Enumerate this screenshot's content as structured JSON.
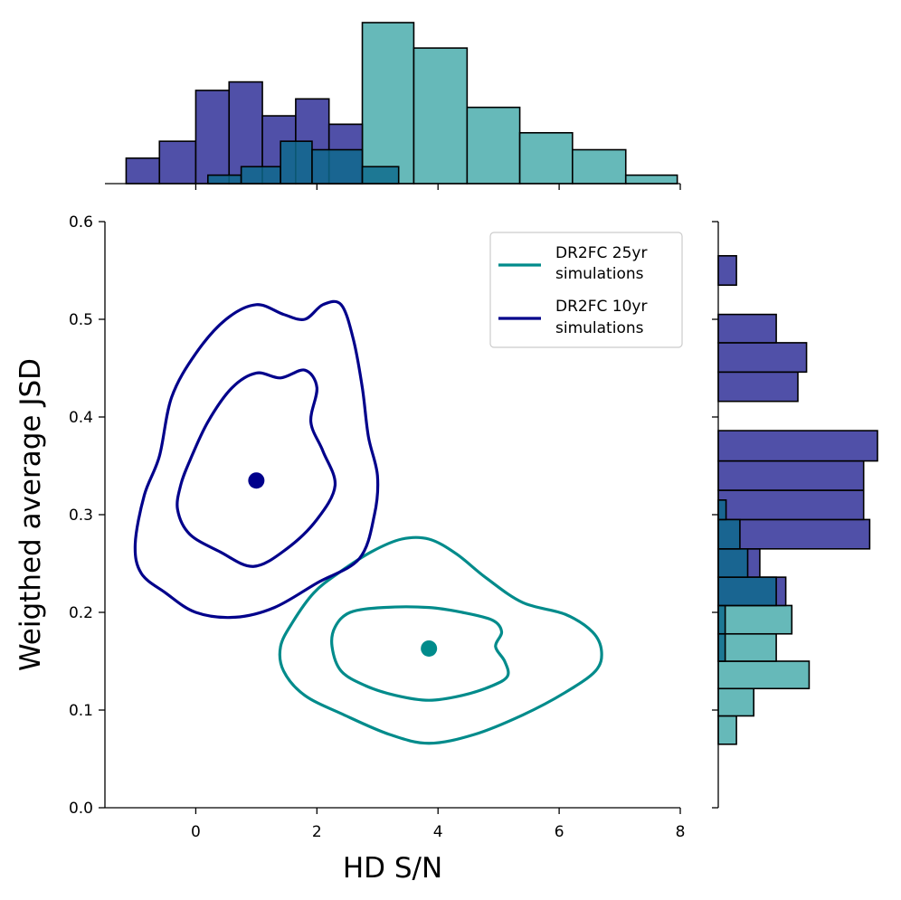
{
  "chart_data": {
    "type": "scatter",
    "subtype": "joint-kde-with-marginal-histograms",
    "xlabel": "HD S/N",
    "ylabel": "Weigthed average JSD",
    "xlim": [
      -1.5,
      8
    ],
    "ylim": [
      0.0,
      0.6
    ],
    "xticks": [
      0,
      2,
      4,
      6,
      8
    ],
    "yticks": [
      0.0,
      0.1,
      0.2,
      0.3,
      0.4,
      0.5,
      0.6
    ],
    "xtick_labels": [
      "0",
      "2",
      "4",
      "6",
      "8"
    ],
    "ytick_labels": [
      "0.0",
      "0.1",
      "0.2",
      "0.3",
      "0.4",
      "0.5",
      "0.6"
    ],
    "legend": {
      "placement": "top-right",
      "entries": [
        {
          "label_line1": "DR2FC 25yr",
          "label_line2": "simulations",
          "series": "s25"
        },
        {
          "label_line1": "DR2FC 10yr",
          "label_line2": "simulations",
          "series": "s10"
        }
      ]
    },
    "series": [
      {
        "id": "s25",
        "name": "DR2FC 25yr simulations",
        "line_color": "#008B8B",
        "hist_color": "#66B9B9",
        "centroid": {
          "x": 3.85,
          "y": 0.163
        },
        "contours": [
          [
            [
              1.45,
              0.14
            ],
            [
              1.8,
              0.115
            ],
            [
              2.45,
              0.095
            ],
            [
              3.2,
              0.075
            ],
            [
              3.85,
              0.066
            ],
            [
              4.6,
              0.075
            ],
            [
              5.4,
              0.095
            ],
            [
              6.1,
              0.118
            ],
            [
              6.6,
              0.14
            ],
            [
              6.7,
              0.16
            ],
            [
              6.55,
              0.18
            ],
            [
              6.1,
              0.198
            ],
            [
              5.4,
              0.21
            ],
            [
              4.8,
              0.235
            ],
            [
              4.3,
              0.26
            ],
            [
              3.85,
              0.275
            ],
            [
              3.4,
              0.275
            ],
            [
              2.9,
              0.262
            ],
            [
              2.35,
              0.24
            ],
            [
              1.95,
              0.22
            ],
            [
              1.6,
              0.19
            ],
            [
              1.4,
              0.165
            ]
          ],
          [
            [
              2.25,
              0.165
            ],
            [
              2.4,
              0.14
            ],
            [
              2.8,
              0.125
            ],
            [
              3.3,
              0.115
            ],
            [
              3.85,
              0.11
            ],
            [
              4.4,
              0.115
            ],
            [
              4.9,
              0.125
            ],
            [
              5.15,
              0.135
            ],
            [
              5.1,
              0.15
            ],
            [
              4.95,
              0.165
            ],
            [
              5.05,
              0.18
            ],
            [
              4.9,
              0.192
            ],
            [
              4.4,
              0.2
            ],
            [
              3.85,
              0.205
            ],
            [
              3.1,
              0.205
            ],
            [
              2.55,
              0.2
            ],
            [
              2.3,
              0.185
            ]
          ]
        ],
        "x_hist": {
          "bin_edges": [
            0.2,
            0.75,
            1.4,
            1.92,
            2.75,
            3.35
          ],
          "counts": [
            1,
            2,
            5,
            4,
            2
          ]
        },
        "x_hist_upper": {
          "bin_edges": [
            1.92,
            2.75,
            3.6,
            4.48,
            5.35,
            6.22,
            7.1,
            7.95
          ],
          "counts": [
            7,
            19,
            16,
            9,
            6,
            4,
            1
          ]
        },
        "y_hist": {
          "bin_edges": [
            0.065,
            0.094,
            0.122,
            0.15,
            0.178,
            0.207
          ],
          "counts": [
            2.1,
            4.1,
            10.5,
            6.7,
            8.5
          ]
        }
      },
      {
        "id": "s10",
        "name": "DR2FC 10yr simulations",
        "line_color": "#00008B",
        "hist_color": "#5050A8",
        "centroid": {
          "x": 1.0,
          "y": 0.335
        },
        "contours": [
          [
            [
              -1.0,
              0.27
            ],
            [
              -0.9,
              0.24
            ],
            [
              -0.5,
              0.22
            ],
            [
              0.0,
              0.2
            ],
            [
              0.65,
              0.195
            ],
            [
              1.3,
              0.205
            ],
            [
              2.0,
              0.23
            ],
            [
              2.7,
              0.255
            ],
            [
              2.95,
              0.3
            ],
            [
              3.0,
              0.34
            ],
            [
              2.85,
              0.38
            ],
            [
              2.75,
              0.43
            ],
            [
              2.6,
              0.48
            ],
            [
              2.4,
              0.515
            ],
            [
              2.1,
              0.515
            ],
            [
              1.8,
              0.5
            ],
            [
              1.45,
              0.505
            ],
            [
              1.0,
              0.515
            ],
            [
              0.5,
              0.5
            ],
            [
              0.0,
              0.465
            ],
            [
              -0.4,
              0.42
            ],
            [
              -0.6,
              0.36
            ],
            [
              -0.85,
              0.32
            ]
          ],
          [
            [
              -0.3,
              0.305
            ],
            [
              -0.1,
              0.28
            ],
            [
              0.4,
              0.262
            ],
            [
              0.95,
              0.247
            ],
            [
              1.5,
              0.265
            ],
            [
              2.0,
              0.295
            ],
            [
              2.3,
              0.33
            ],
            [
              2.1,
              0.365
            ],
            [
              1.9,
              0.395
            ],
            [
              2.0,
              0.43
            ],
            [
              1.8,
              0.448
            ],
            [
              1.4,
              0.44
            ],
            [
              1.0,
              0.445
            ],
            [
              0.6,
              0.43
            ],
            [
              0.2,
              0.395
            ],
            [
              -0.1,
              0.355
            ],
            [
              -0.25,
              0.33
            ]
          ]
        ],
        "x_hist": {
          "bin_edges": [
            -1.15,
            -0.6,
            0.0,
            0.55,
            1.1,
            1.65,
            2.2,
            2.75
          ],
          "counts": [
            3,
            5,
            11,
            12,
            8,
            10,
            7
          ]
        },
        "y_hist": {
          "bin_edges": [
            0.207,
            0.236,
            0.265,
            0.295,
            0.325,
            0.355,
            0.386,
            0.416,
            0.446,
            0.476,
            0.505,
            0.535,
            0.565
          ],
          "counts": [
            7.8,
            4.8,
            17.5,
            16.8,
            16.8,
            18.4,
            0,
            9.2,
            10.2,
            6.7,
            0,
            2.1
          ]
        }
      }
    ]
  }
}
